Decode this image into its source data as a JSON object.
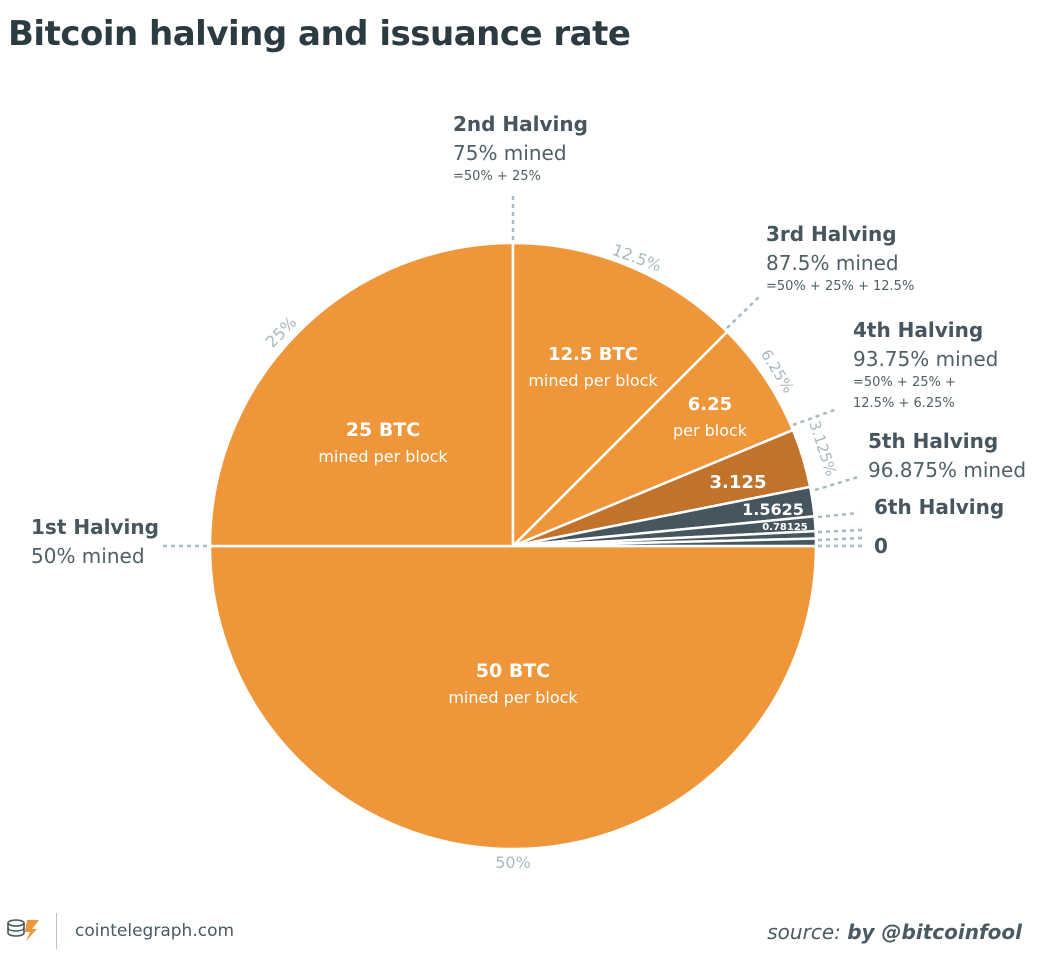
{
  "title": "Bitcoin halving and issuance rate",
  "colors": {
    "orange": "#ee9639",
    "dark_orange": "#c1722b",
    "slate": "#46555e",
    "leader": "#a9b8c0",
    "pct_label": "#a9b8c0",
    "callout_title": "#46555e",
    "callout_text": "#4f5f67"
  },
  "chart_data": {
    "type": "pie",
    "title": "Bitcoin halving and issuance rate",
    "slices": [
      {
        "share_pct": 50,
        "pct_label": "50%",
        "value_label": "50 BTC",
        "sub_label": "mined per block",
        "color": "#ee9639"
      },
      {
        "share_pct": 25,
        "pct_label": "25%",
        "value_label": "25 BTC",
        "sub_label": "mined per block",
        "color": "#ee9639"
      },
      {
        "share_pct": 12.5,
        "pct_label": "12.5%",
        "value_label": "12.5 BTC",
        "sub_label": "mined per block",
        "color": "#ee9639"
      },
      {
        "share_pct": 6.25,
        "pct_label": "6.25%",
        "value_label": "6.25",
        "sub_label": "per block",
        "color": "#ee9639"
      },
      {
        "share_pct": 3.125,
        "pct_label": "3.125%",
        "value_label": "",
        "sub_label": "",
        "color": "#c1722b"
      },
      {
        "share_pct": 1.5625,
        "pct_label": "",
        "value_label": "3.125",
        "sub_label": "",
        "color": "#46555e"
      },
      {
        "share_pct": 0.78125,
        "pct_label": "",
        "value_label": "1.5625",
        "sub_label": "",
        "color": "#46555e"
      },
      {
        "share_pct": 0.390625,
        "pct_label": "",
        "value_label": "0.78125",
        "sub_label": "",
        "color": "#46555e"
      },
      {
        "share_pct": 0.390625,
        "pct_label": "",
        "value_label": "",
        "sub_label": "",
        "color": "#46555e"
      }
    ],
    "halvings": [
      {
        "title": "1st Halving",
        "mined": "50% mined",
        "formula": []
      },
      {
        "title": "2nd Halving",
        "mined": "75% mined",
        "formula": [
          "=50% + 25%"
        ]
      },
      {
        "title": "3rd Halving",
        "mined": "87.5% mined",
        "formula": [
          "=50% + 25% + 12.5%"
        ]
      },
      {
        "title": "4th Halving",
        "mined": "93.75% mined",
        "formula": [
          "=50% + 25% +",
          "12.5% + 6.25%"
        ]
      },
      {
        "title": "5th Halving",
        "mined": "96.875% mined",
        "formula": []
      },
      {
        "title": "6th Halving",
        "mined": "",
        "formula": []
      },
      {
        "title": "0",
        "mined": "",
        "formula": []
      }
    ]
  },
  "footer": {
    "site": "cointelegraph.com",
    "source_prefix": "source: ",
    "source_author": "by @bitcoinfool",
    "logo_icon": "cointelegraph-logo-icon"
  }
}
